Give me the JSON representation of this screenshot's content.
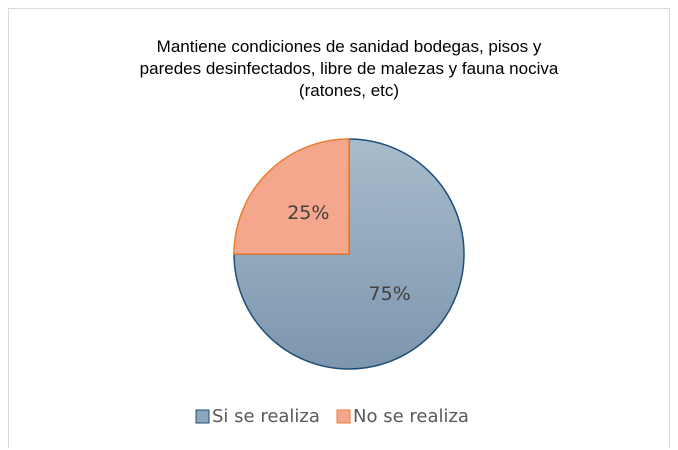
{
  "chart_data": {
    "type": "pie",
    "title": "Mantiene condiciones de sanidad bodegas, pisos y paredes desinfectados, libre de malezas y fauna nociva (ratones, etc)",
    "categories": [
      "Si se realiza",
      "No se realiza"
    ],
    "values": [
      75,
      25
    ],
    "value_labels": [
      "75%",
      "25%"
    ],
    "colors": [
      "#8ea6bb",
      "#f4a78c"
    ],
    "edge_colors": [
      "#1f4e79",
      "#ed7d31"
    ],
    "legend": "bottom"
  }
}
